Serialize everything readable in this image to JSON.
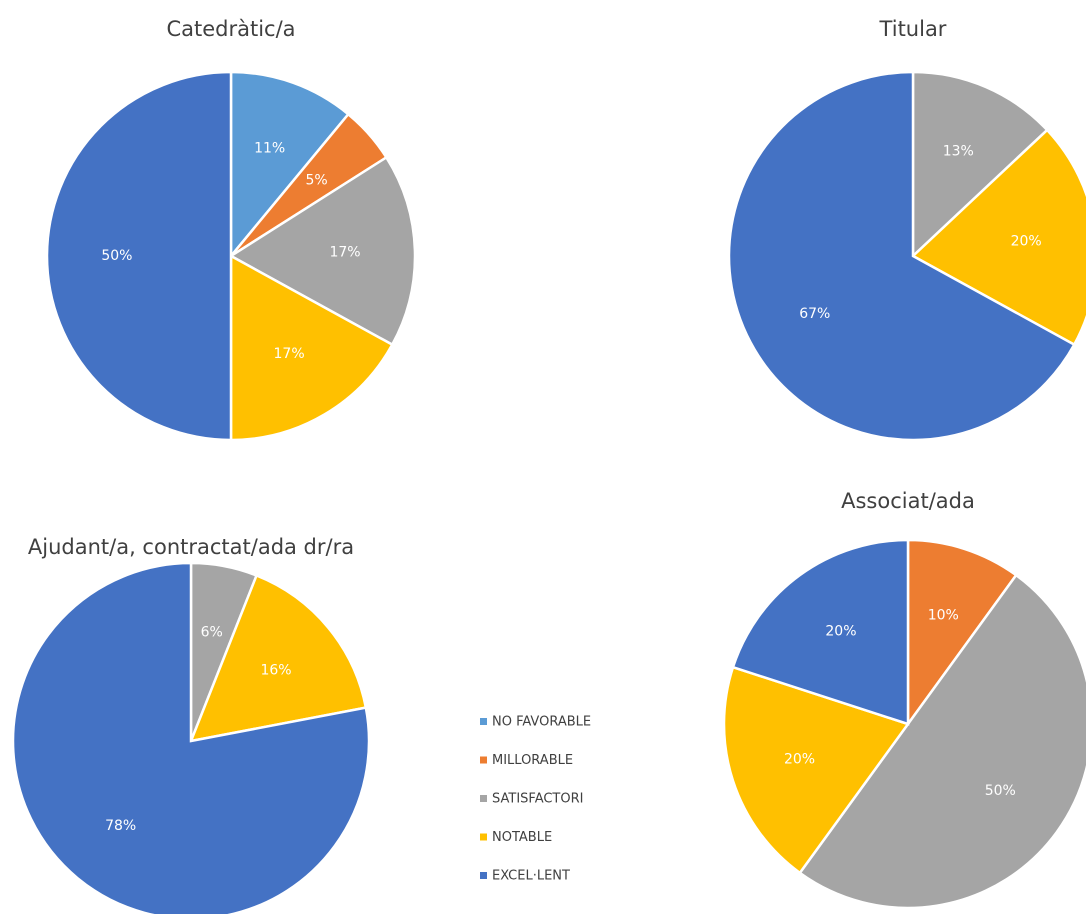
{
  "chart_data": [
    {
      "type": "pie",
      "title": "Catedràtic/a",
      "categories": [
        "NO FAVORABLE",
        "MILLORABLE",
        "SATISFACTORI",
        "NOTABLE",
        "EXCEL·LENT"
      ],
      "values": [
        11,
        5,
        17,
        17,
        50
      ],
      "value_labels": [
        "11%",
        "5%",
        "17%",
        "17%",
        "50%"
      ],
      "colors": [
        "#5b9bd5",
        "#ed7d31",
        "#a5a5a5",
        "#ffc000",
        "#4472c4"
      ]
    },
    {
      "type": "pie",
      "title": "Titular",
      "categories": [
        "SATISFACTORI",
        "NOTABLE",
        "EXCEL·LENT"
      ],
      "values": [
        13,
        20,
        67
      ],
      "value_labels": [
        "13%",
        "20%",
        "67%"
      ],
      "colors": [
        "#a5a5a5",
        "#ffc000",
        "#4472c4"
      ]
    },
    {
      "type": "pie",
      "title": "Ajudant/a, contractat/ada dr/ra",
      "categories": [
        "SATISFACTORI",
        "NOTABLE",
        "EXCEL·LENT"
      ],
      "values": [
        6,
        16,
        78
      ],
      "value_labels": [
        "6%",
        "16%",
        "78%"
      ],
      "colors": [
        "#a5a5a5",
        "#ffc000",
        "#4472c4"
      ]
    },
    {
      "type": "pie",
      "title": "Associat/ada",
      "categories": [
        "MILLORABLE",
        "SATISFACTORI",
        "NOTABLE",
        "EXCEL·LENT"
      ],
      "values": [
        10,
        50,
        20,
        20
      ],
      "value_labels": [
        "10%",
        "50%",
        "20%",
        "20%"
      ],
      "colors": [
        "#ed7d31",
        "#a5a5a5",
        "#ffc000",
        "#4472c4"
      ]
    }
  ],
  "legend": {
    "labels": [
      "NO FAVORABLE",
      "MILLORABLE",
      "SATISFACTORI",
      "NOTABLE",
      "EXCEL·LENT"
    ],
    "colors": [
      "#5b9bd5",
      "#ed7d31",
      "#a5a5a5",
      "#ffc000",
      "#4472c4"
    ]
  }
}
